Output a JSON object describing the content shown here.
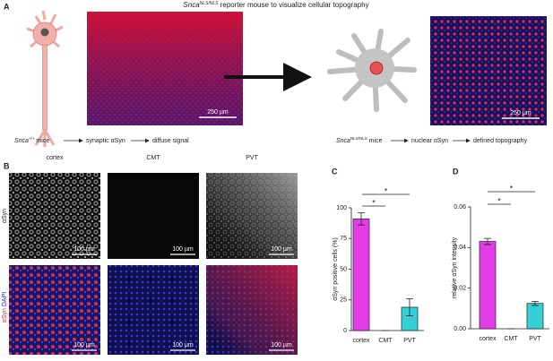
{
  "panel_a": {
    "label": "A",
    "title": [
      "Snca",
      "NLS/NLS",
      " reporter mouse to visualize cellular topography"
    ],
    "scale_left": "250 µm",
    "scale_right": "250 µm",
    "caption_left": [
      "Snca",
      "+/+",
      " mice",
      "synaptic αSyn",
      "diffuse signal"
    ],
    "caption_right": [
      "Snca",
      "NLS/NLS",
      " mice",
      "nuclear αSyn",
      "defined topography"
    ]
  },
  "panel_b": {
    "label": "B",
    "columns": [
      "cortex",
      "CMT",
      "PVT"
    ],
    "row_top": "αSyn",
    "row_bottom": [
      "αSyn",
      " DAPI"
    ],
    "scale_bars": [
      "100 µm",
      "100 µm",
      "100 µm",
      "100 µm",
      "100 µm",
      "100 µm"
    ]
  },
  "chart_data": [
    {
      "type": "bar",
      "label": "C",
      "y_label": "αSyn positive cells (%)",
      "categories": [
        "cortex",
        "CMT",
        "PVT"
      ],
      "values": [
        91,
        0,
        19
      ],
      "errors": [
        5,
        0,
        7
      ],
      "colors": [
        "#e43ce6",
        "#888888",
        "#33d1d6"
      ],
      "ylim": [
        0,
        100
      ],
      "yticks": [
        0,
        25,
        50,
        75,
        100
      ],
      "annotations": [
        "*",
        "*"
      ]
    },
    {
      "type": "bar",
      "label": "D",
      "y_label": "relative αSyn intensity",
      "categories": [
        "cortex",
        "CMT",
        "PVT"
      ],
      "values": [
        0.043,
        0,
        0.0125
      ],
      "errors": [
        0.0015,
        0,
        0.001
      ],
      "colors": [
        "#e43ce6",
        "#888888",
        "#33d1d6"
      ],
      "ylim": [
        0,
        0.06
      ],
      "yticks": [
        {
          "value": 0,
          "label": "0.00"
        },
        0.02,
        0.04,
        0.06
      ],
      "annotations": [
        "*",
        "*"
      ]
    }
  ]
}
